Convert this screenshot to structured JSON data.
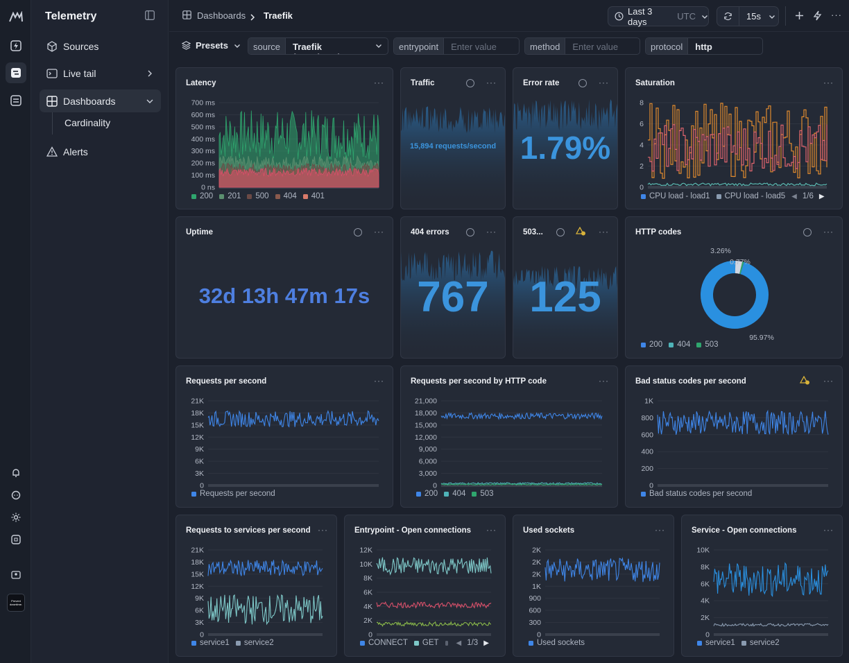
{
  "app": {
    "title": "Telemetry"
  },
  "sidebar": {
    "items": [
      {
        "label": "Sources",
        "icon": "cube-icon"
      },
      {
        "label": "Live tail",
        "icon": "terminal-icon"
      },
      {
        "label": "Dashboards",
        "icon": "dashboard-icon"
      },
      {
        "label": "Alerts",
        "icon": "warning-icon"
      }
    ],
    "sub_items": [
      {
        "label": "Cardinality"
      }
    ],
    "rail_bottom_label": "Prevent downtime."
  },
  "header": {
    "breadcrumb": [
      "Dashboards",
      "Traefik"
    ],
    "time_range": "Last 3 days",
    "timezone": "UTC",
    "refresh_interval": "15s"
  },
  "filters": {
    "presets_label": "Presets",
    "items": [
      {
        "key": "source",
        "value": "Traefik (templates)",
        "placeholder": ""
      },
      {
        "key": "entrypoint",
        "value": "",
        "placeholder": "Enter value"
      },
      {
        "key": "method",
        "value": "",
        "placeholder": "Enter value"
      },
      {
        "key": "protocol",
        "value": "http",
        "placeholder": ""
      }
    ]
  },
  "panels": {
    "latency": {
      "title": "Latency",
      "legend": [
        "200",
        "201",
        "500",
        "404",
        "401"
      ]
    },
    "traffic": {
      "title": "Traffic",
      "value": "15,894 requests/second"
    },
    "error_rate": {
      "title": "Error rate",
      "value": "1.79%"
    },
    "saturation": {
      "title": "Saturation",
      "legend": [
        "CPU load - load1",
        "CPU load - load5"
      ],
      "page": "1/6"
    },
    "uptime": {
      "title": "Uptime",
      "value": "32d 13h 47m 17s"
    },
    "errors_404": {
      "title": "404 errors",
      "value": "767"
    },
    "errors_503": {
      "title": "503...",
      "value": "125"
    },
    "http_codes": {
      "title": "HTTP codes",
      "legend": [
        "200",
        "404",
        "503"
      ],
      "labels": [
        "3.26%",
        "0.77%",
        "95.97%"
      ]
    },
    "rps": {
      "title": "Requests per second",
      "legend": [
        "Requests per second"
      ]
    },
    "rps_code": {
      "title": "Requests per second by HTTP code",
      "legend": [
        "200",
        "404",
        "503"
      ]
    },
    "bad_status": {
      "title": "Bad status codes per second",
      "legend": [
        "Bad status codes per second"
      ]
    },
    "services_rps": {
      "title": "Requests to services per second",
      "legend": [
        "service1",
        "service2"
      ]
    },
    "entry_conn": {
      "title": "Entrypoint - Open connections",
      "legend": [
        "CONNECT",
        "GET"
      ],
      "page": "1/3"
    },
    "sockets": {
      "title": "Used sockets",
      "legend": [
        "Used sockets"
      ]
    },
    "service_conn": {
      "title": "Service - Open connections",
      "legend": [
        "service1",
        "service2"
      ]
    }
  },
  "chart_data": [
    {
      "type": "area",
      "title": "Latency",
      "yticks": [
        "700 ms",
        "600 ms",
        "500 ms",
        "400 ms",
        "300 ms",
        "200 ms",
        "100 ms",
        "0 ns"
      ],
      "ylim": [
        0,
        700
      ],
      "series": [
        {
          "name": "200",
          "color": "#2fa66e",
          "range": [
            220,
            640
          ]
        },
        {
          "name": "201",
          "color": "#5b8f6f",
          "range": [
            150,
            260
          ]
        },
        {
          "name": "500",
          "color": "#6b4a46",
          "range": [
            120,
            200
          ]
        },
        {
          "name": "404",
          "color": "#8a5a4d",
          "range": [
            80,
            160
          ]
        },
        {
          "name": "401",
          "color": "#d8506a",
          "range": [
            90,
            160
          ]
        }
      ]
    },
    {
      "type": "line",
      "title": "Saturation",
      "yticks": [
        "8",
        "6",
        "4",
        "2",
        "0"
      ],
      "ylim": [
        0,
        8
      ],
      "series": [
        {
          "name": "CPU load - load1",
          "color": "#e08a2e",
          "range": [
            0.8,
            8
          ]
        },
        {
          "name": "CPU load - load5",
          "color": "#e0656e",
          "range": [
            1.5,
            6
          ]
        }
      ]
    },
    {
      "type": "pie",
      "title": "HTTP codes",
      "slices": [
        {
          "label": "200",
          "value": 95.97,
          "color": "#2a90e0"
        },
        {
          "label": "404",
          "value": 3.26,
          "color": "#cfd6e2"
        },
        {
          "label": "503",
          "value": 0.77,
          "color": "#2fa66e"
        }
      ]
    },
    {
      "type": "line",
      "title": "Requests per second",
      "yticks": [
        "21K",
        "18K",
        "15K",
        "12K",
        "9K",
        "6K",
        "3K",
        "0"
      ],
      "ylim": [
        0,
        21000
      ],
      "series": [
        {
          "name": "Requests per second",
          "color": "#3f86e8",
          "range": [
            14500,
            18500
          ]
        }
      ]
    },
    {
      "type": "line",
      "title": "Requests per second by HTTP code",
      "yticks": [
        "21,000",
        "18,000",
        "15,000",
        "12,000",
        "9,000",
        "6,000",
        "3,000",
        "0"
      ],
      "ylim": [
        0,
        21000
      ],
      "series": [
        {
          "name": "200",
          "color": "#3f86e8",
          "range": [
            16500,
            18000
          ]
        },
        {
          "name": "404",
          "color": "#4fb3b8",
          "range": [
            300,
            700
          ]
        },
        {
          "name": "503",
          "color": "#2fa66e",
          "range": [
            100,
            400
          ]
        }
      ]
    },
    {
      "type": "line",
      "title": "Bad status codes per second",
      "yticks": [
        "1K",
        "800",
        "600",
        "400",
        "200",
        "0"
      ],
      "ylim": [
        0,
        1000
      ],
      "series": [
        {
          "name": "Bad status codes per second",
          "color": "#3f86e8",
          "range": [
            600,
            880
          ]
        }
      ]
    },
    {
      "type": "line",
      "title": "Requests to services per second",
      "yticks": [
        "21K",
        "18K",
        "15K",
        "12K",
        "9K",
        "6K",
        "3K",
        "0"
      ],
      "ylim": [
        0,
        21000
      ],
      "series": [
        {
          "name": "service1",
          "color": "#3f86e8",
          "range": [
            14500,
            18500
          ]
        },
        {
          "name": "service2",
          "color": "#7ec8c8",
          "range": [
            2500,
            10000
          ]
        }
      ]
    },
    {
      "type": "line",
      "title": "Entrypoint - Open connections",
      "yticks": [
        "12K",
        "10K",
        "8K",
        "6K",
        "4K",
        "2K",
        "0"
      ],
      "ylim": [
        0,
        12000
      ],
      "series": [
        {
          "name": "CONNECT",
          "color": "#7ec8c8",
          "range": [
            8500,
            11000
          ]
        },
        {
          "name": "GET",
          "color": "#d8506a",
          "range": [
            3800,
            4600
          ]
        },
        {
          "name": "",
          "color": "#8ab84a",
          "range": [
            1200,
            1800
          ]
        }
      ]
    },
    {
      "type": "line",
      "title": "Used sockets",
      "yticks": [
        "2K",
        "2K",
        "2K",
        "1K",
        "900",
        "600",
        "300",
        "0"
      ],
      "ylim": [
        0,
        2100
      ],
      "series": [
        {
          "name": "Used sockets",
          "color": "#3f86e8",
          "range": [
            1300,
            1900
          ]
        }
      ]
    },
    {
      "type": "line",
      "title": "Service - Open connections",
      "yticks": [
        "10K",
        "8K",
        "6K",
        "4K",
        "2K",
        "0"
      ],
      "ylim": [
        0,
        10000
      ],
      "series": [
        {
          "name": "service1",
          "color": "#2a90e0",
          "range": [
            4500,
            8500
          ]
        },
        {
          "name": "service2",
          "color": "#8a9bb0",
          "range": [
            1000,
            1300
          ]
        }
      ]
    }
  ],
  "colors": {
    "accent": "#3b94dd",
    "panel": "#242a36",
    "background": "#1c212c"
  }
}
